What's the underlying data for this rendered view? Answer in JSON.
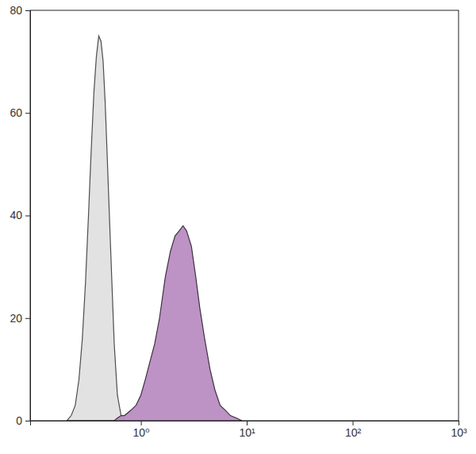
{
  "chart_data": {
    "type": "area",
    "log": "x",
    "x": [
      0.2,
      0.22,
      0.24,
      0.26,
      0.28,
      0.3,
      0.32,
      0.34,
      0.36,
      0.38,
      0.4,
      0.42,
      0.44,
      0.46,
      0.48,
      0.5,
      0.53,
      0.56,
      0.6,
      0.65,
      0.7,
      0.8,
      0.9,
      1.0,
      1.1,
      1.2,
      1.35,
      1.5,
      1.7,
      1.9,
      2.1,
      2.3,
      2.5,
      2.7,
      3.0,
      3.3,
      3.6,
      4.0,
      4.5,
      5.0,
      5.6,
      6.3,
      7.0,
      8.0,
      9.0
    ],
    "series": [
      {
        "color": "#e0e0e0",
        "values": [
          0,
          1,
          3,
          8,
          16,
          27,
          40,
          53,
          64,
          71,
          75,
          74,
          70,
          62,
          52,
          42,
          28,
          15,
          5,
          1,
          0,
          0,
          0,
          0,
          0,
          0,
          0,
          0,
          0,
          0,
          0,
          0,
          0,
          0,
          0,
          0,
          0,
          0,
          0,
          0,
          0,
          0,
          0,
          0,
          0
        ]
      },
      {
        "color": "#b98cc2",
        "values": [
          0,
          0,
          0,
          0,
          0,
          0,
          0,
          0,
          0,
          0,
          0,
          0,
          0,
          0,
          0,
          0,
          0,
          0,
          0.5,
          1,
          1,
          2,
          3,
          5,
          8,
          11,
          15,
          20,
          28,
          33,
          36,
          37,
          38,
          37,
          34,
          28,
          22,
          16,
          10,
          6,
          3,
          2,
          1,
          0.5,
          0
        ]
      }
    ],
    "xlim": [
      0.09,
      1000
    ],
    "xticks": [
      {
        "value": 1,
        "label": "10⁰"
      },
      {
        "value": 10,
        "label": "10¹"
      },
      {
        "value": 100,
        "label": "10²"
      },
      {
        "value": 1000,
        "label": "10³"
      }
    ],
    "ylim": [
      0,
      80
    ],
    "yticks": [
      0,
      20,
      40,
      60,
      80
    ],
    "grid": false
  }
}
